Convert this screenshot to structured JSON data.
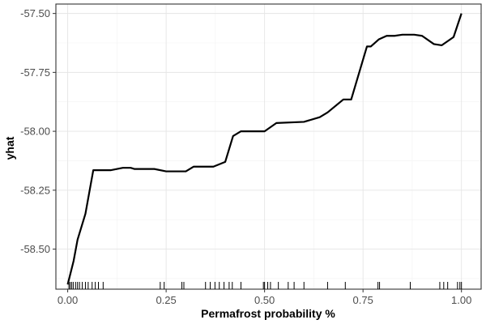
{
  "chart_data": {
    "type": "line",
    "title": "",
    "xlabel": "Permafrost probability %",
    "ylabel": "yhat",
    "xlim": [
      -0.03,
      1.05
    ],
    "ylim": [
      -58.67,
      -57.46
    ],
    "x_ticks": [
      0.0,
      0.25,
      0.5,
      0.75,
      1.0
    ],
    "x_tick_labels": [
      "0.00",
      "0.25",
      "0.50",
      "0.75",
      "1.00"
    ],
    "y_ticks": [
      -57.5,
      -57.75,
      -58.0,
      -58.25,
      -58.5
    ],
    "y_tick_labels": [
      "-57.50",
      "-57.75",
      "-58.00",
      "-58.25",
      "-58.50"
    ],
    "grid": true,
    "legend": "none",
    "line_color": "#000000",
    "series": [
      {
        "x": [
          0.0,
          0.015,
          0.025,
          0.045,
          0.065,
          0.11,
          0.14,
          0.16,
          0.17,
          0.22,
          0.25,
          0.3,
          0.32,
          0.37,
          0.4,
          0.42,
          0.44,
          0.46,
          0.5,
          0.53,
          0.6,
          0.64,
          0.66,
          0.7,
          0.72,
          0.76,
          0.77,
          0.79,
          0.81,
          0.83,
          0.85,
          0.88,
          0.9,
          0.93,
          0.95,
          0.98,
          1.0
        ],
        "y": [
          -58.65,
          -58.55,
          -58.46,
          -58.35,
          -58.165,
          -58.165,
          -58.155,
          -58.155,
          -58.16,
          -58.16,
          -58.17,
          -58.17,
          -58.15,
          -58.15,
          -58.13,
          -58.02,
          -58.0,
          -58.0,
          -58.0,
          -57.965,
          -57.96,
          -57.94,
          -57.92,
          -57.865,
          -57.865,
          -57.64,
          -57.64,
          -57.61,
          -57.595,
          -57.595,
          -57.59,
          -57.59,
          -57.595,
          -57.63,
          -57.635,
          -57.6,
          -57.5
        ]
      }
    ],
    "rug": [
      0.003,
      0.006,
      0.01,
      0.014,
      0.02,
      0.025,
      0.03,
      0.037,
      0.045,
      0.052,
      0.062,
      0.07,
      0.078,
      0.09,
      0.235,
      0.245,
      0.29,
      0.295,
      0.35,
      0.362,
      0.374,
      0.385,
      0.397,
      0.41,
      0.418,
      0.44,
      0.497,
      0.5,
      0.508,
      0.515,
      0.535,
      0.56,
      0.575,
      0.6,
      0.66,
      0.705,
      0.788,
      0.792,
      0.87,
      0.945,
      0.955,
      0.965,
      0.99,
      0.996,
      1.0
    ]
  }
}
